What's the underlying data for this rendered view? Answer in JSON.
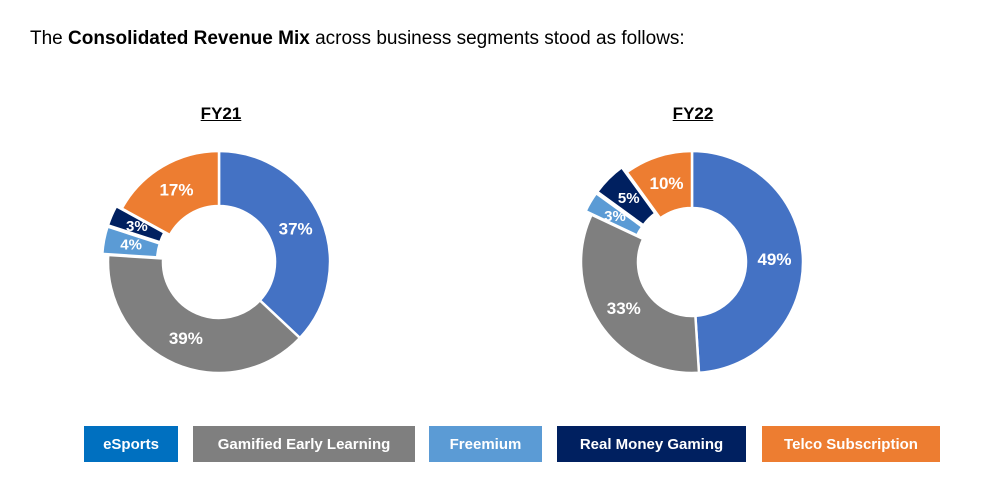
{
  "intro": {
    "prefix": "The ",
    "emphasis": "Consolidated Revenue Mix",
    "suffix": " across business segments stood as follows:"
  },
  "legend": [
    {
      "label": "eSports",
      "color": "#0070C0"
    },
    {
      "label": "Gamified Early Learning",
      "color": "#7F7F7F"
    },
    {
      "label": "Freemium",
      "color": "#5B9BD5"
    },
    {
      "label": "Real Money Gaming",
      "color": "#002060"
    },
    {
      "label": "Telco Subscription",
      "color": "#ED7D31"
    }
  ],
  "chart_data": [
    {
      "type": "pie",
      "style": "donut",
      "title": "FY21",
      "categories": [
        "eSports",
        "Gamified Early Learning",
        "Freemium",
        "Real Money Gaming",
        "Telco Subscription"
      ],
      "values": [
        37,
        39,
        4,
        3,
        17
      ],
      "labels": [
        "37%",
        "39%",
        "4%",
        "3%",
        "17%"
      ],
      "colors": [
        "#4472C4",
        "#7F7F7F",
        "#5B9BD5",
        "#002060",
        "#ED7D31"
      ],
      "legend_position": "bottom"
    },
    {
      "type": "pie",
      "style": "donut",
      "title": "FY22",
      "categories": [
        "eSports",
        "Gamified Early Learning",
        "Freemium",
        "Real Money Gaming",
        "Telco Subscription"
      ],
      "values": [
        49,
        33,
        3,
        5,
        10
      ],
      "labels": [
        "49%",
        "33%",
        "3%",
        "5%",
        "10%"
      ],
      "colors": [
        "#4472C4",
        "#7F7F7F",
        "#5B9BD5",
        "#002060",
        "#ED7D31"
      ],
      "legend_position": "bottom"
    }
  ]
}
